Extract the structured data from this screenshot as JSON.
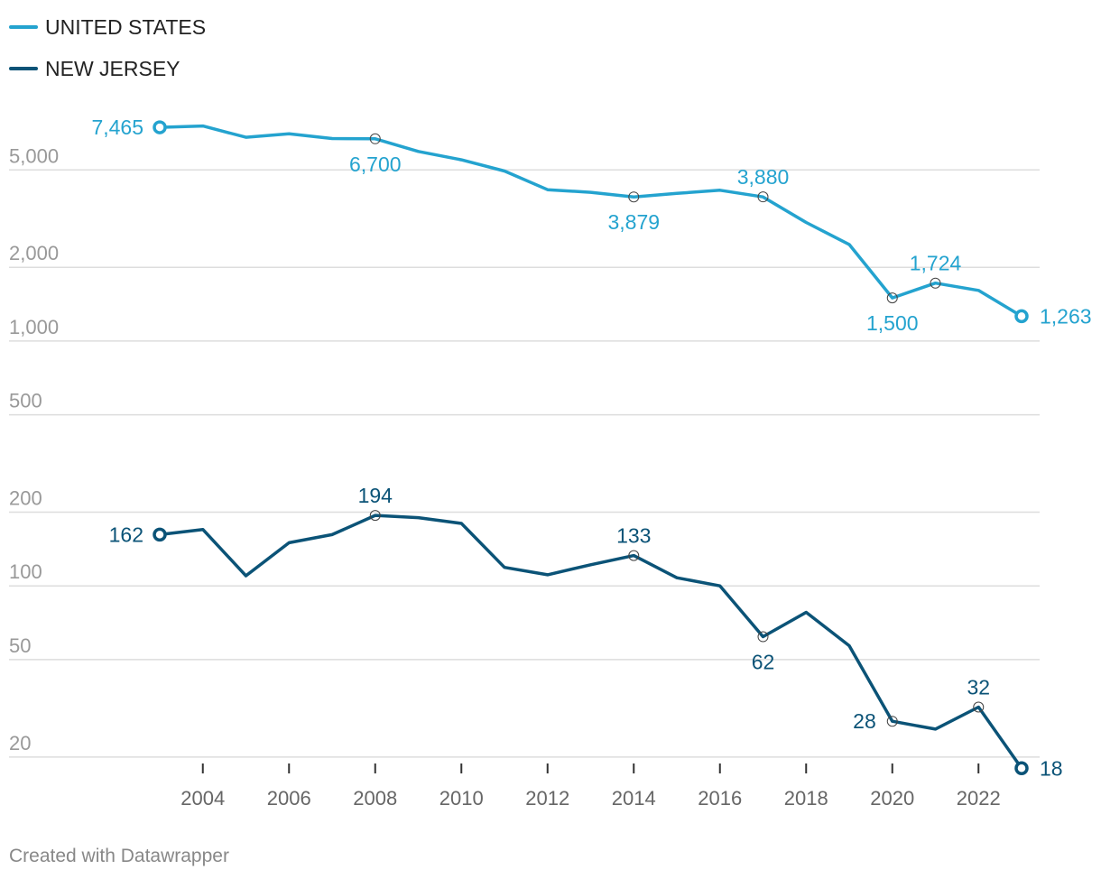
{
  "legend": [
    {
      "label": "UNITED STATES",
      "color": "#24a3cf"
    },
    {
      "label": "NEW JERSEY",
      "color": "#0b5377"
    }
  ],
  "footer": "Created with Datawrapper",
  "chart_data": {
    "type": "line",
    "yscale": "log",
    "ylim": [
      17,
      8200
    ],
    "xlim": [
      2003,
      2023
    ],
    "yticks": [
      {
        "value": 5000,
        "label": "5,000"
      },
      {
        "value": 2000,
        "label": "2,000"
      },
      {
        "value": 1000,
        "label": "1,000"
      },
      {
        "value": 500,
        "label": "500"
      },
      {
        "value": 200,
        "label": "200"
      },
      {
        "value": 100,
        "label": "100"
      },
      {
        "value": 50,
        "label": "50"
      },
      {
        "value": 20,
        "label": "20"
      }
    ],
    "xticks": [
      2004,
      2006,
      2008,
      2010,
      2012,
      2014,
      2016,
      2018,
      2020,
      2022
    ],
    "x": [
      2003,
      2004,
      2005,
      2006,
      2007,
      2008,
      2009,
      2010,
      2011,
      2012,
      2013,
      2014,
      2015,
      2016,
      2017,
      2018,
      2019,
      2020,
      2021,
      2022,
      2023
    ],
    "series": [
      {
        "name": "UNITED STATES",
        "color": "#24a3cf",
        "values": [
          7465,
          7560,
          6800,
          7020,
          6720,
          6700,
          5950,
          5500,
          4950,
          4150,
          4050,
          3879,
          4010,
          4130,
          3880,
          3050,
          2480,
          1500,
          1724,
          1610,
          1263
        ],
        "labels": [
          {
            "year": 2003,
            "text": "7,465",
            "pos": "left",
            "endpoint": true
          },
          {
            "year": 2008,
            "text": "6,700",
            "pos": "below"
          },
          {
            "year": 2014,
            "text": "3,879",
            "pos": "below"
          },
          {
            "year": 2017,
            "text": "3,880",
            "pos": "above"
          },
          {
            "year": 2020,
            "text": "1,500",
            "pos": "below"
          },
          {
            "year": 2021,
            "text": "1,724",
            "pos": "above"
          },
          {
            "year": 2023,
            "text": "1,263",
            "pos": "right",
            "endpoint": true
          }
        ]
      },
      {
        "name": "NEW JERSEY",
        "color": "#0b5377",
        "values": [
          162,
          170,
          110,
          150,
          162,
          194,
          190,
          180,
          119,
          111,
          122,
          133,
          108,
          100,
          62,
          78,
          57,
          28,
          26,
          32,
          18
        ],
        "labels": [
          {
            "year": 2003,
            "text": "162",
            "pos": "left",
            "endpoint": true
          },
          {
            "year": 2008,
            "text": "194",
            "pos": "above"
          },
          {
            "year": 2014,
            "text": "133",
            "pos": "above"
          },
          {
            "year": 2017,
            "text": "62",
            "pos": "below"
          },
          {
            "year": 2020,
            "text": "28",
            "pos": "left"
          },
          {
            "year": 2022,
            "text": "32",
            "pos": "above"
          },
          {
            "year": 2023,
            "text": "18",
            "pos": "right",
            "endpoint": true
          }
        ]
      }
    ]
  }
}
